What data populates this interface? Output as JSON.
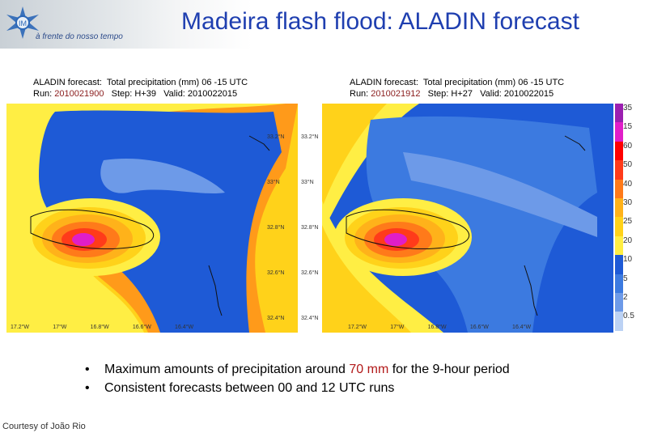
{
  "header": {
    "tagline": "à frente do nosso tempo",
    "title": "Madeira flash flood: ALADIN forecast"
  },
  "panels": [
    {
      "line1_label": "ALADIN forecast:",
      "line1_rest": "  Total precipitation (mm) 06 -15 UTC",
      "run_label": "Run: ",
      "run_value": "2010021900",
      "step_text": "   Step: H+39   Valid: 2010022015"
    },
    {
      "line1_label": "ALADIN forecast:",
      "line1_rest": "  Total precipitation (mm) 06 -15 UTC",
      "run_label": "Run: ",
      "run_value": "2010021912",
      "step_text": "   Step: H+27   Valid: 2010022015"
    }
  ],
  "map_ticks": {
    "lat": [
      "33.2°N",
      "33°N",
      "32.8°N",
      "32.6°N",
      "32.4°N"
    ],
    "lon": [
      "17.2°W",
      "17°W",
      "16.8°W",
      "16.6°W",
      "16.4°W"
    ]
  },
  "legend": {
    "labels": [
      "35",
      "15",
      "60",
      "50",
      "40",
      "30",
      "25",
      "20",
      "10",
      "5",
      "2",
      "0.5"
    ],
    "colors": [
      "#9b1fb0",
      "#e01ec8",
      "#ff0000",
      "#ff3b1a",
      "#ff7a1a",
      "#ffb21a",
      "#ffd21a",
      "#ffee44",
      "#1e5ad6",
      "#3c7ae0",
      "#6d9ae8",
      "#bcd2f4"
    ]
  },
  "bullets": {
    "b1_pre": "Maximum amounts of precipitation around ",
    "b1_hl": "70 mm",
    "b1_post": " for the 9-hour period",
    "b2": "Consistent forecasts between 00 and 12 UTC runs"
  },
  "credit": "Courtesy of João Rio"
}
